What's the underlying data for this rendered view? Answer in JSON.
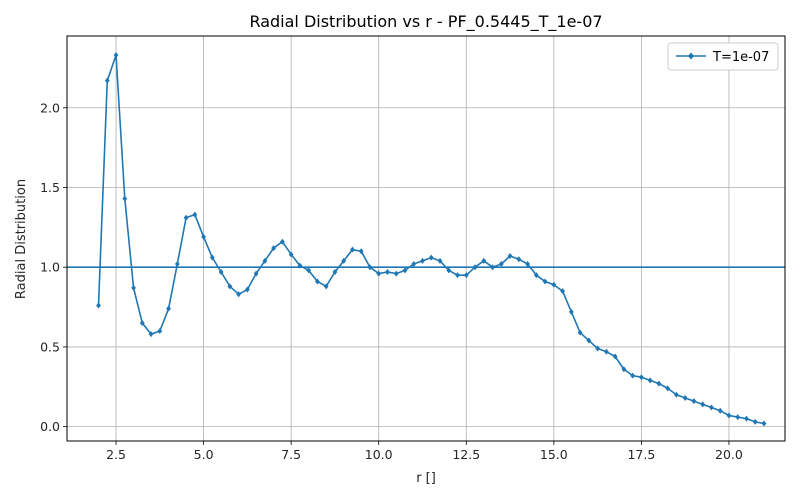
{
  "chart_data": {
    "type": "line",
    "title": "Radial Distribution vs r - PF_0.5445_T_1e-07",
    "xlabel": "r []",
    "ylabel": "Radial Distribution",
    "xlim": [
      1.1,
      21.6
    ],
    "ylim": [
      -0.09,
      2.45
    ],
    "x_ticks": [
      2.5,
      5.0,
      7.5,
      10.0,
      12.5,
      15.0,
      17.5,
      20.0
    ],
    "x_tick_labels": [
      "2.5",
      "5.0",
      "7.5",
      "10.0",
      "12.5",
      "15.0",
      "17.5",
      "20.0"
    ],
    "y_ticks": [
      0.0,
      0.5,
      1.0,
      1.5,
      2.0
    ],
    "y_tick_labels": [
      "0.0",
      "0.5",
      "1.0",
      "1.5",
      "2.0"
    ],
    "grid": true,
    "legend": "top-right",
    "reference_line": {
      "y": 1.0,
      "color": "#1f77b4"
    },
    "series": [
      {
        "name": "T=1e-07",
        "color": "#1f77b4",
        "marker": "diamond",
        "x": [
          2.0,
          2.25,
          2.5,
          2.75,
          3.0,
          3.25,
          3.5,
          3.75,
          4.0,
          4.25,
          4.5,
          4.75,
          5.0,
          5.25,
          5.5,
          5.75,
          6.0,
          6.25,
          6.5,
          6.75,
          7.0,
          7.25,
          7.5,
          7.75,
          8.0,
          8.25,
          8.5,
          8.75,
          9.0,
          9.25,
          9.5,
          9.75,
          10.0,
          10.25,
          10.5,
          10.75,
          11.0,
          11.25,
          11.5,
          11.75,
          12.0,
          12.25,
          12.5,
          12.75,
          13.0,
          13.25,
          13.5,
          13.75,
          14.0,
          14.25,
          14.5,
          14.75,
          15.0,
          15.25,
          15.5,
          15.75,
          16.0,
          16.25,
          16.5,
          16.75,
          17.0,
          17.25,
          17.5,
          17.75,
          18.0,
          18.25,
          18.5,
          18.75,
          19.0,
          19.25,
          19.5,
          19.75,
          20.0,
          20.25,
          20.5,
          20.75,
          21.0
        ],
        "y": [
          0.76,
          2.17,
          2.33,
          1.43,
          0.87,
          0.65,
          0.58,
          0.6,
          0.74,
          1.02,
          1.31,
          1.33,
          1.19,
          1.06,
          0.97,
          0.88,
          0.83,
          0.86,
          0.96,
          1.04,
          1.12,
          1.16,
          1.08,
          1.01,
          0.98,
          0.91,
          0.88,
          0.97,
          1.04,
          1.11,
          1.1,
          1.0,
          0.96,
          0.97,
          0.96,
          0.98,
          1.02,
          1.04,
          1.06,
          1.04,
          0.98,
          0.95,
          0.95,
          1.0,
          1.04,
          1.0,
          1.02,
          1.07,
          1.05,
          1.02,
          0.95,
          0.91,
          0.89,
          0.85,
          0.72,
          0.59,
          0.54,
          0.49,
          0.47,
          0.44,
          0.36,
          0.32,
          0.31,
          0.29,
          0.27,
          0.24,
          0.2,
          0.18,
          0.16,
          0.14,
          0.12,
          0.1,
          0.07,
          0.06,
          0.05,
          0.03,
          0.02
        ]
      }
    ]
  }
}
